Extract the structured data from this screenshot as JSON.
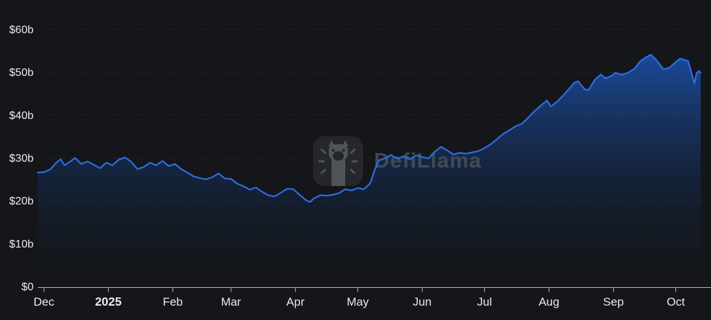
{
  "watermark": {
    "text": "DefiLlama",
    "logo": "defillama-llama-logo"
  },
  "colors": {
    "background": "#141619",
    "line": "#2d6cdf",
    "area_top": "#1b4da0",
    "area_bottom": "#101722",
    "axis": "#b9bdc2",
    "tick_label": "#e9ebee",
    "grid": "rgba(255,255,255,0.07)",
    "watermark_text": "#454c57",
    "watermark_box": "#26282b",
    "watermark_figure": "#54575b"
  },
  "chart_data": {
    "type": "area",
    "y_unit": "$b",
    "ylim": [
      0,
      65
    ],
    "grid": "horizontal-dashed",
    "legend": "none",
    "y_ticks": [
      {
        "label": "$0",
        "value": 0
      },
      {
        "label": "$10b",
        "value": 10
      },
      {
        "label": "$20b",
        "value": 20
      },
      {
        "label": "$30b",
        "value": 30
      },
      {
        "label": "$40b",
        "value": 40
      },
      {
        "label": "$50b",
        "value": 50
      },
      {
        "label": "$60b",
        "value": 60
      }
    ],
    "x_ticks": [
      {
        "label": "Dec",
        "date": "2024-12-01",
        "bold": false
      },
      {
        "label": "2025",
        "date": "2025-01-01",
        "bold": true
      },
      {
        "label": "Feb",
        "date": "2025-02-01",
        "bold": false
      },
      {
        "label": "Mar",
        "date": "2025-03-01",
        "bold": false
      },
      {
        "label": "Apr",
        "date": "2025-04-01",
        "bold": false
      },
      {
        "label": "May",
        "date": "2025-05-01",
        "bold": false
      },
      {
        "label": "Jun",
        "date": "2025-06-01",
        "bold": false
      },
      {
        "label": "Jul",
        "date": "2025-07-01",
        "bold": false
      },
      {
        "label": "Aug",
        "date": "2025-08-01",
        "bold": false
      },
      {
        "label": "Sep",
        "date": "2025-09-01",
        "bold": false
      },
      {
        "label": "Oct",
        "date": "2025-10-01",
        "bold": false
      }
    ],
    "points": [
      [
        "2024-11-28",
        26.6
      ],
      [
        "2024-12-01",
        26.7
      ],
      [
        "2024-12-04",
        27.3
      ],
      [
        "2024-12-07",
        28.9
      ],
      [
        "2024-12-09",
        29.7
      ],
      [
        "2024-12-11",
        28.3
      ],
      [
        "2024-12-14",
        29.3
      ],
      [
        "2024-12-16",
        30.0
      ],
      [
        "2024-12-19",
        28.6
      ],
      [
        "2024-12-22",
        29.2
      ],
      [
        "2024-12-25",
        28.4
      ],
      [
        "2024-12-28",
        27.6
      ],
      [
        "2024-12-31",
        28.9
      ],
      [
        "2025-01-03",
        28.3
      ],
      [
        "2025-01-06",
        29.6
      ],
      [
        "2025-01-09",
        30.1
      ],
      [
        "2025-01-12",
        29.1
      ],
      [
        "2025-01-15",
        27.4
      ],
      [
        "2025-01-18",
        27.9
      ],
      [
        "2025-01-21",
        28.9
      ],
      [
        "2025-01-24",
        28.3
      ],
      [
        "2025-01-27",
        29.3
      ],
      [
        "2025-01-30",
        28.1
      ],
      [
        "2025-02-02",
        28.6
      ],
      [
        "2025-02-05",
        27.4
      ],
      [
        "2025-02-08",
        26.6
      ],
      [
        "2025-02-11",
        25.7
      ],
      [
        "2025-02-14",
        25.3
      ],
      [
        "2025-02-17",
        25.0
      ],
      [
        "2025-02-20",
        25.5
      ],
      [
        "2025-02-23",
        26.4
      ],
      [
        "2025-02-26",
        25.2
      ],
      [
        "2025-03-01",
        25.1
      ],
      [
        "2025-03-04",
        24.0
      ],
      [
        "2025-03-07",
        23.4
      ],
      [
        "2025-03-10",
        22.6
      ],
      [
        "2025-03-13",
        23.1
      ],
      [
        "2025-03-16",
        22.1
      ],
      [
        "2025-03-19",
        21.3
      ],
      [
        "2025-03-22",
        21.0
      ],
      [
        "2025-03-25",
        21.9
      ],
      [
        "2025-03-28",
        22.8
      ],
      [
        "2025-03-31",
        22.7
      ],
      [
        "2025-04-03",
        21.4
      ],
      [
        "2025-04-06",
        20.2
      ],
      [
        "2025-04-08",
        19.7
      ],
      [
        "2025-04-10",
        20.6
      ],
      [
        "2025-04-13",
        21.3
      ],
      [
        "2025-04-16",
        21.2
      ],
      [
        "2025-04-19",
        21.4
      ],
      [
        "2025-04-22",
        21.8
      ],
      [
        "2025-04-25",
        22.7
      ],
      [
        "2025-04-28",
        22.4
      ],
      [
        "2025-05-01",
        23.0
      ],
      [
        "2025-05-04",
        22.7
      ],
      [
        "2025-05-07",
        24.1
      ],
      [
        "2025-05-09",
        27.0
      ],
      [
        "2025-05-11",
        29.4
      ],
      [
        "2025-05-14",
        29.9
      ],
      [
        "2025-05-17",
        30.7
      ],
      [
        "2025-05-20",
        29.8
      ],
      [
        "2025-05-23",
        30.4
      ],
      [
        "2025-05-26",
        29.7
      ],
      [
        "2025-05-29",
        30.6
      ],
      [
        "2025-06-01",
        30.2
      ],
      [
        "2025-06-04",
        29.9
      ],
      [
        "2025-06-07",
        31.4
      ],
      [
        "2025-06-10",
        32.6
      ],
      [
        "2025-06-13",
        31.8
      ],
      [
        "2025-06-16",
        30.8
      ],
      [
        "2025-06-19",
        31.2
      ],
      [
        "2025-06-22",
        31.0
      ],
      [
        "2025-06-25",
        31.3
      ],
      [
        "2025-06-28",
        31.6
      ],
      [
        "2025-07-01",
        32.3
      ],
      [
        "2025-07-04",
        33.2
      ],
      [
        "2025-07-07",
        34.4
      ],
      [
        "2025-07-10",
        35.6
      ],
      [
        "2025-07-13",
        36.5
      ],
      [
        "2025-07-16",
        37.4
      ],
      [
        "2025-07-19",
        38.0
      ],
      [
        "2025-07-22",
        39.4
      ],
      [
        "2025-07-25",
        40.9
      ],
      [
        "2025-07-28",
        42.2
      ],
      [
        "2025-07-31",
        43.4
      ],
      [
        "2025-08-02",
        42.0
      ],
      [
        "2025-08-05",
        43.2
      ],
      [
        "2025-08-08",
        44.7
      ],
      [
        "2025-08-11",
        46.3
      ],
      [
        "2025-08-13",
        47.5
      ],
      [
        "2025-08-15",
        47.9
      ],
      [
        "2025-08-18",
        46.1
      ],
      [
        "2025-08-20",
        45.8
      ],
      [
        "2025-08-23",
        48.2
      ],
      [
        "2025-08-26",
        49.5
      ],
      [
        "2025-08-28",
        48.6
      ],
      [
        "2025-08-31",
        49.1
      ],
      [
        "2025-09-02",
        49.9
      ],
      [
        "2025-09-05",
        49.4
      ],
      [
        "2025-09-08",
        49.9
      ],
      [
        "2025-09-11",
        50.8
      ],
      [
        "2025-09-14",
        52.6
      ],
      [
        "2025-09-16",
        53.3
      ],
      [
        "2025-09-19",
        54.1
      ],
      [
        "2025-09-21",
        53.2
      ],
      [
        "2025-09-23",
        52.0
      ],
      [
        "2025-09-25",
        50.7
      ],
      [
        "2025-09-28",
        51.1
      ],
      [
        "2025-10-01",
        52.4
      ],
      [
        "2025-10-03",
        53.2
      ],
      [
        "2025-10-05",
        52.9
      ],
      [
        "2025-10-07",
        52.6
      ],
      [
        "2025-10-09",
        49.0
      ],
      [
        "2025-10-10",
        47.4
      ],
      [
        "2025-10-11",
        49.8
      ],
      [
        "2025-10-12",
        50.3
      ],
      [
        "2025-10-13",
        49.9
      ]
    ]
  }
}
